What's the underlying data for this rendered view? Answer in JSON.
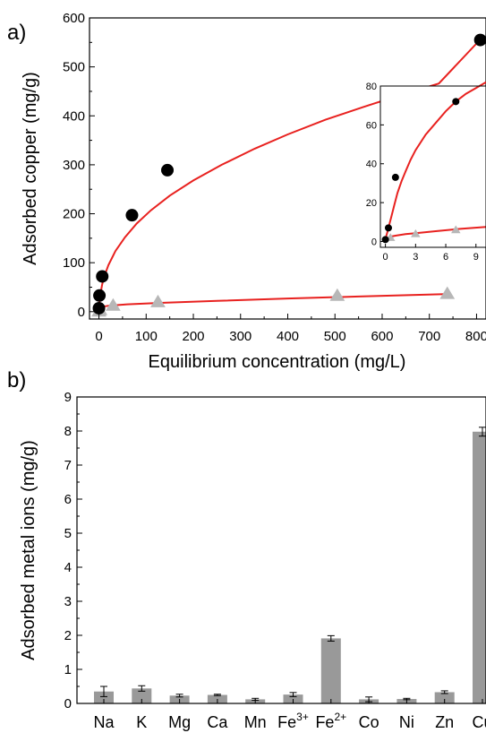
{
  "chart_data": [
    {
      "panel_label": "a)",
      "type": "scatter",
      "xlabel": "Equilibrium concentration (mg/L)",
      "ylabel": "Adsorbed copper (mg/g)",
      "xlim": [
        -20,
        820
      ],
      "ylim": [
        -15,
        600
      ],
      "xticks": [
        0,
        100,
        200,
        300,
        400,
        500,
        600,
        700,
        800
      ],
      "yticks": [
        0,
        100,
        200,
        300,
        400,
        500,
        600
      ],
      "grid": false,
      "series": [
        {
          "marker": "circle",
          "color": "#000000",
          "points": [
            [
              0,
              7
            ],
            [
              1,
              33
            ],
            [
              7,
              72
            ],
            [
              70,
              197
            ],
            [
              145,
              289
            ],
            [
              808,
              555
            ]
          ],
          "fit": [
            [
              0,
              0
            ],
            [
              0.3,
              8
            ],
            [
              1,
              17
            ],
            [
              2,
              27
            ],
            [
              4,
              41
            ],
            [
              7,
              56
            ],
            [
              12,
              74
            ],
            [
              20,
              95
            ],
            [
              35,
              124
            ],
            [
              55,
              152
            ],
            [
              80,
              180
            ],
            [
              110,
              207
            ],
            [
              150,
              237
            ],
            [
              200,
              268
            ],
            [
              260,
              300
            ],
            [
              330,
              333
            ],
            [
              400,
              362
            ],
            [
              480,
              392
            ],
            [
              560,
              418
            ],
            [
              640,
              443
            ],
            [
              720,
              466
            ],
            [
              808,
              556
            ]
          ]
        },
        {
          "marker": "triangle",
          "color": "#b7b7b7",
          "points": [
            [
              0,
              1
            ],
            [
              2,
              4
            ],
            [
              30,
              13
            ],
            [
              125,
              20
            ],
            [
              505,
              33
            ],
            [
              738,
              37
            ]
          ],
          "fit": [
            [
              0,
              0
            ],
            [
              1,
              4
            ],
            [
              3,
              7
            ],
            [
              8,
              10
            ],
            [
              20,
              12
            ],
            [
              60,
              15
            ],
            [
              130,
              18
            ],
            [
              250,
              22
            ],
            [
              400,
              27
            ],
            [
              550,
              31
            ],
            [
              740,
              36
            ]
          ]
        }
      ],
      "fit_color": "#e8211f",
      "inset": {
        "xlim": [
          -0.5,
          10
        ],
        "ylim": [
          -3,
          80
        ],
        "xticks": [
          0,
          3,
          6,
          9
        ],
        "yticks": [
          0,
          20,
          40,
          60,
          80
        ],
        "series": [
          {
            "marker": "circle",
            "color": "#000000",
            "points": [
              [
                0,
                1
              ],
              [
                0.3,
                7
              ],
              [
                1,
                33
              ],
              [
                7,
                72
              ]
            ],
            "fit": [
              [
                0,
                0
              ],
              [
                0.1,
                3
              ],
              [
                0.2,
                5
              ],
              [
                0.4,
                9
              ],
              [
                0.6,
                13
              ],
              [
                0.9,
                19
              ],
              [
                1.2,
                25
              ],
              [
                1.6,
                31
              ],
              [
                2,
                36
              ],
              [
                2.5,
                42
              ],
              [
                3,
                47
              ],
              [
                4,
                55
              ],
              [
                5,
                61
              ],
              [
                6,
                67
              ],
              [
                7,
                72
              ],
              [
                8,
                76
              ],
              [
                9,
                79
              ],
              [
                10,
                82
              ]
            ]
          },
          {
            "marker": "triangle",
            "color": "#b7b7b7",
            "points": [
              [
                0.5,
                2
              ],
              [
                3,
                4
              ],
              [
                7,
                6
              ]
            ],
            "fit": [
              [
                0,
                0
              ],
              [
                0.2,
                1.5
              ],
              [
                0.5,
                2.5
              ],
              [
                1,
                3
              ],
              [
                2,
                3.8
              ],
              [
                3,
                4.3
              ],
              [
                5,
                5.3
              ],
              [
                7,
                6.3
              ],
              [
                10,
                7.5
              ]
            ]
          }
        ]
      }
    },
    {
      "panel_label": "b)",
      "type": "bar",
      "xlabel": "",
      "ylabel": "Adsorbed metal ions (mg/g)",
      "ylim": [
        0,
        9
      ],
      "yticks": [
        0,
        1,
        2,
        3,
        4,
        5,
        6,
        7,
        8,
        9
      ],
      "grid": false,
      "bar_color": "#999999",
      "categories": [
        {
          "base": "Na",
          "sup": ""
        },
        {
          "base": "K",
          "sup": ""
        },
        {
          "base": "Mg",
          "sup": ""
        },
        {
          "base": "Ca",
          "sup": ""
        },
        {
          "base": "Mn",
          "sup": ""
        },
        {
          "base": "Fe",
          "sup": "3+"
        },
        {
          "base": "Fe",
          "sup": "2+"
        },
        {
          "base": "Co",
          "sup": ""
        },
        {
          "base": "Ni",
          "sup": ""
        },
        {
          "base": "Zn",
          "sup": ""
        },
        {
          "base": "Cu",
          "sup": ""
        }
      ],
      "values": [
        0.35,
        0.44,
        0.23,
        0.25,
        0.12,
        0.26,
        1.91,
        0.12,
        0.13,
        0.33,
        7.98
      ],
      "errors": [
        0.15,
        0.08,
        0.04,
        0.02,
        0.03,
        0.06,
        0.08,
        0.07,
        0.02,
        0.04,
        0.13
      ]
    }
  ]
}
